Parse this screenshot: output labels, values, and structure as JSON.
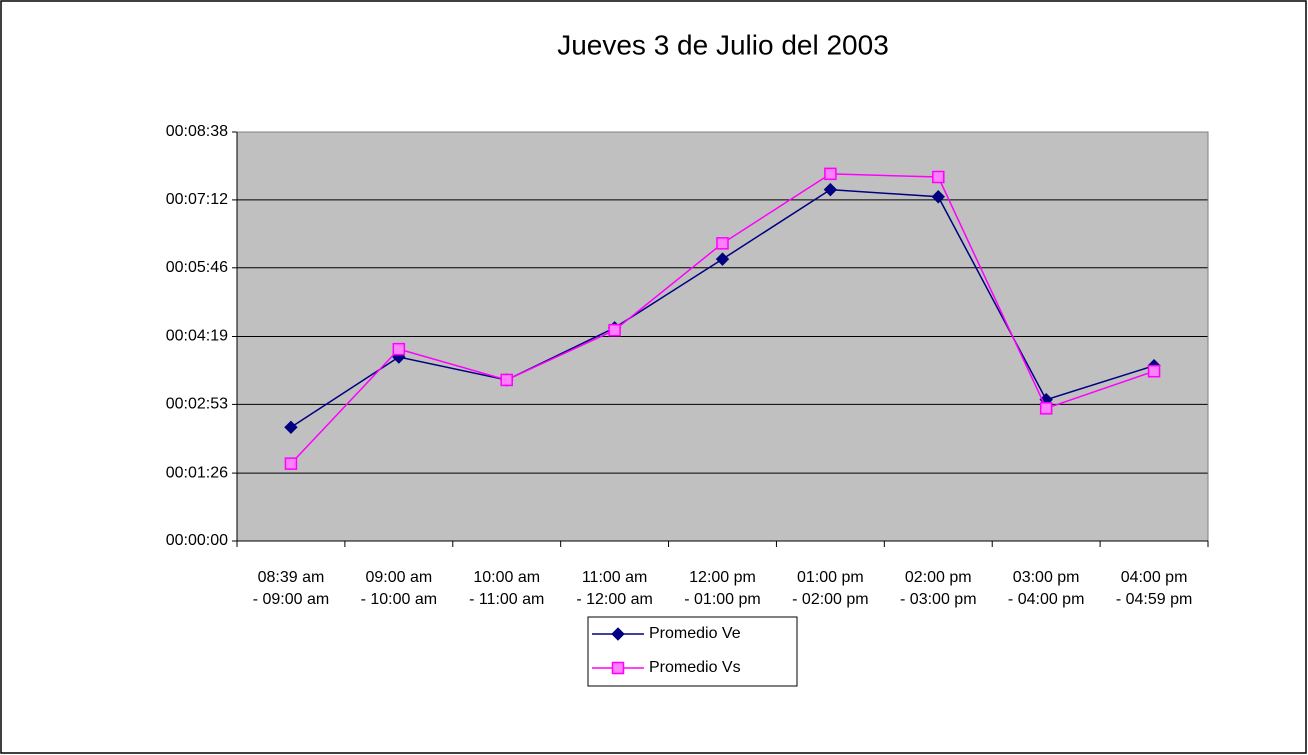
{
  "chart_data": {
    "type": "line",
    "title": "Jueves 3 de Julio del 2003",
    "categories": [
      "08:39 am - 09:00 am",
      "09:00 am - 10:00 am",
      "10:00 am - 11:00 am",
      "11:00 am - 12:00 am",
      "12:00 pm - 01:00 pm",
      "01:00 pm - 02:00 pm",
      "02:00 pm - 03:00 pm",
      "03:00 pm - 04:00 pm",
      "04:00 pm - 04:59 pm"
    ],
    "series": [
      {
        "name": "Promedio Ve",
        "color": "#000080",
        "marker": "diamond",
        "values": [
          144,
          233,
          204,
          270,
          357,
          445,
          436,
          179,
          222
        ]
      },
      {
        "name": "Promedio Vs",
        "color": "#ff00ff",
        "marker": "square",
        "values": [
          98,
          243,
          204,
          267,
          377,
          465,
          461,
          168,
          215
        ]
      }
    ],
    "ylim": [
      0,
      518
    ],
    "yticks": [
      {
        "value": 0,
        "label": "00:00:00"
      },
      {
        "value": 86,
        "label": "00:01:26"
      },
      {
        "value": 173,
        "label": "00:02:53"
      },
      {
        "value": 259,
        "label": "00:04:19"
      },
      {
        "value": 346,
        "label": "00:05:46"
      },
      {
        "value": 432,
        "label": "00:07:12"
      },
      {
        "value": 518,
        "label": "00:08:38"
      }
    ],
    "grid": true
  }
}
